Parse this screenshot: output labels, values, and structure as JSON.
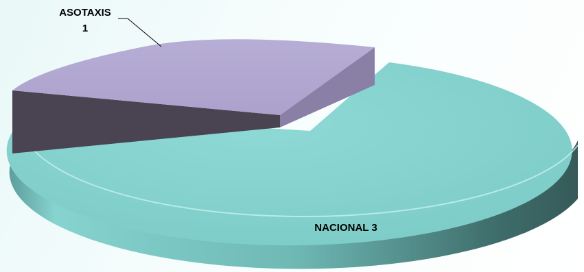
{
  "chart_data": {
    "type": "pie",
    "style": "3d-exploded",
    "title": "",
    "slices": [
      {
        "label": "ASOTAXIS",
        "value": 1,
        "color": "#b3a9d2"
      },
      {
        "label": "NACIONAL",
        "value": 3,
        "color": "#86d3cf"
      }
    ],
    "data_labels": [
      {
        "line1": "ASOTAXIS",
        "line2": "1"
      },
      {
        "line1": "NACIONAL 3",
        "line2": ""
      }
    ],
    "legend": "none"
  }
}
